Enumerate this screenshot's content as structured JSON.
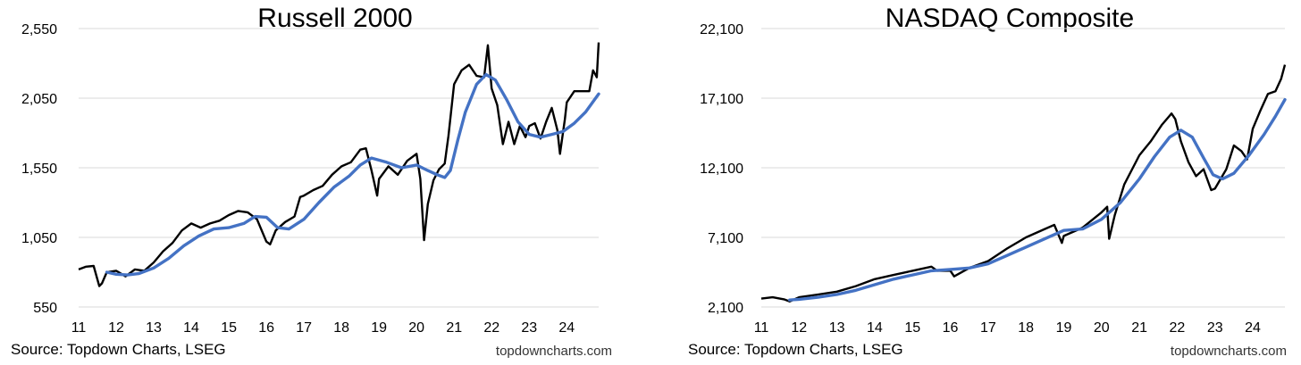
{
  "chart_data": [
    {
      "type": "line",
      "title": "Russell 2000",
      "source": "Source: Topdown Charts, LSEG",
      "watermark": "topdowncharts.com",
      "y_tick_labels": [
        "2,550",
        "2,050",
        "1,550",
        "1,050",
        "550"
      ],
      "y_ticks": [
        2550,
        2050,
        1550,
        1050,
        550
      ],
      "ylim": [
        550,
        2550
      ],
      "x_tick_labels": [
        "11",
        "12",
        "13",
        "14",
        "15",
        "16",
        "17",
        "18",
        "19",
        "20",
        "21",
        "22",
        "23",
        "24"
      ],
      "xlim": [
        2011.0,
        2024.85
      ],
      "grid": "horizontal",
      "colors": {
        "price": "#000000",
        "moving_average": "#4472c4"
      },
      "series": [
        {
          "role": "price",
          "x": [
            2011.0,
            2011.2,
            2011.4,
            2011.55,
            2011.62,
            2011.75,
            2012.0,
            2012.25,
            2012.5,
            2012.75,
            2013.0,
            2013.25,
            2013.5,
            2013.75,
            2014.0,
            2014.25,
            2014.5,
            2014.75,
            2015.0,
            2015.25,
            2015.5,
            2015.75,
            2016.0,
            2016.1,
            2016.25,
            2016.5,
            2016.75,
            2016.9,
            2017.0,
            2017.25,
            2017.5,
            2017.75,
            2018.0,
            2018.25,
            2018.5,
            2018.65,
            2018.8,
            2018.95,
            2019.0,
            2019.25,
            2019.5,
            2019.75,
            2020.0,
            2020.1,
            2020.2,
            2020.3,
            2020.45,
            2020.6,
            2020.75,
            2020.85,
            2021.0,
            2021.2,
            2021.4,
            2021.6,
            2021.8,
            2021.9,
            2022.0,
            2022.15,
            2022.3,
            2022.45,
            2022.6,
            2022.75,
            2022.9,
            2023.0,
            2023.15,
            2023.3,
            2023.45,
            2023.6,
            2023.75,
            2023.82,
            2023.95,
            2024.0,
            2024.2,
            2024.4,
            2024.6,
            2024.7,
            2024.8,
            2024.85
          ],
          "values": [
            820,
            840,
            845,
            700,
            720,
            800,
            810,
            770,
            820,
            810,
            870,
            950,
            1010,
            1100,
            1150,
            1120,
            1150,
            1170,
            1210,
            1240,
            1230,
            1180,
            1020,
            1000,
            1100,
            1160,
            1200,
            1340,
            1350,
            1390,
            1420,
            1500,
            1560,
            1590,
            1680,
            1690,
            1530,
            1350,
            1470,
            1560,
            1500,
            1600,
            1650,
            1470,
            1030,
            1290,
            1460,
            1540,
            1580,
            1780,
            2150,
            2250,
            2290,
            2210,
            2200,
            2430,
            2120,
            2000,
            1720,
            1880,
            1720,
            1850,
            1770,
            1850,
            1870,
            1760,
            1880,
            1980,
            1820,
            1650,
            1900,
            2020,
            2100,
            2100,
            2100,
            2250,
            2200,
            2450
          ]
        },
        {
          "role": "moving_average",
          "x": [
            2011.75,
            2012.0,
            2012.3,
            2012.6,
            2013.0,
            2013.4,
            2013.8,
            2014.2,
            2014.6,
            2015.0,
            2015.4,
            2015.7,
            2016.0,
            2016.3,
            2016.6,
            2017.0,
            2017.4,
            2017.8,
            2018.2,
            2018.5,
            2018.8,
            2019.2,
            2019.6,
            2020.0,
            2020.3,
            2020.55,
            2020.75,
            2020.9,
            2021.1,
            2021.3,
            2021.6,
            2021.85,
            2022.1,
            2022.4,
            2022.7,
            2023.0,
            2023.3,
            2023.6,
            2023.9,
            2024.2,
            2024.5,
            2024.85
          ],
          "values": [
            800,
            785,
            780,
            790,
            830,
            900,
            990,
            1060,
            1110,
            1120,
            1150,
            1200,
            1195,
            1120,
            1110,
            1180,
            1300,
            1410,
            1490,
            1570,
            1620,
            1590,
            1550,
            1570,
            1530,
            1500,
            1480,
            1530,
            1750,
            1950,
            2150,
            2220,
            2180,
            2040,
            1880,
            1790,
            1770,
            1790,
            1810,
            1870,
            1950,
            2080
          ]
        }
      ]
    },
    {
      "type": "line",
      "title": "NASDAQ Composite",
      "source": "Source: Topdown Charts, LSEG",
      "watermark": "topdowncharts.com",
      "y_tick_labels": [
        "22,100",
        "17,100",
        "12,100",
        "7,100",
        "2,100"
      ],
      "y_ticks": [
        22100,
        17100,
        12100,
        7100,
        2100
      ],
      "ylim": [
        2100,
        22100
      ],
      "x_tick_labels": [
        "11",
        "12",
        "13",
        "14",
        "15",
        "16",
        "17",
        "18",
        "19",
        "20",
        "21",
        "22",
        "23",
        "24"
      ],
      "xlim": [
        2011.0,
        2024.85
      ],
      "grid": "horizontal",
      "colors": {
        "price": "#000000",
        "moving_average": "#4472c4"
      },
      "series": [
        {
          "role": "price",
          "x": [
            2011.0,
            2011.3,
            2011.6,
            2011.75,
            2012.0,
            2012.5,
            2013.0,
            2013.5,
            2014.0,
            2014.5,
            2015.0,
            2015.5,
            2015.65,
            2016.0,
            2016.1,
            2016.5,
            2017.0,
            2017.5,
            2018.0,
            2018.5,
            2018.75,
            2018.95,
            2019.0,
            2019.5,
            2020.0,
            2020.15,
            2020.2,
            2020.35,
            2020.6,
            2021.0,
            2021.3,
            2021.6,
            2021.85,
            2021.95,
            2022.1,
            2022.3,
            2022.5,
            2022.7,
            2022.9,
            2023.0,
            2023.3,
            2023.5,
            2023.7,
            2023.85,
            2024.0,
            2024.2,
            2024.4,
            2024.6,
            2024.75,
            2024.85
          ],
          "values": [
            2700,
            2800,
            2650,
            2500,
            2800,
            3000,
            3200,
            3600,
            4100,
            4400,
            4700,
            5000,
            4700,
            4700,
            4300,
            4900,
            5400,
            6300,
            7100,
            7700,
            8000,
            6700,
            7200,
            7800,
            8900,
            9300,
            7000,
            8700,
            10900,
            13000,
            14000,
            15200,
            16000,
            15600,
            14000,
            12500,
            11500,
            12000,
            10500,
            10600,
            12000,
            13700,
            13300,
            12700,
            14900,
            16200,
            17400,
            17600,
            18500,
            19500
          ]
        },
        {
          "role": "moving_average",
          "x": [
            2011.75,
            2012.0,
            2012.5,
            2013.0,
            2013.5,
            2014.0,
            2014.5,
            2015.0,
            2015.5,
            2016.0,
            2016.5,
            2017.0,
            2017.5,
            2018.0,
            2018.5,
            2019.0,
            2019.5,
            2020.0,
            2020.5,
            2021.0,
            2021.4,
            2021.8,
            2022.1,
            2022.4,
            2022.7,
            2022.95,
            2023.2,
            2023.5,
            2023.9,
            2024.3,
            2024.6,
            2024.85
          ],
          "values": [
            2600,
            2650,
            2800,
            3000,
            3300,
            3700,
            4100,
            4400,
            4700,
            4800,
            4900,
            5200,
            5800,
            6400,
            7000,
            7600,
            7700,
            8400,
            9600,
            11300,
            12900,
            14300,
            14800,
            14300,
            12800,
            11600,
            11300,
            11700,
            13000,
            14500,
            15800,
            17000
          ]
        }
      ]
    }
  ]
}
